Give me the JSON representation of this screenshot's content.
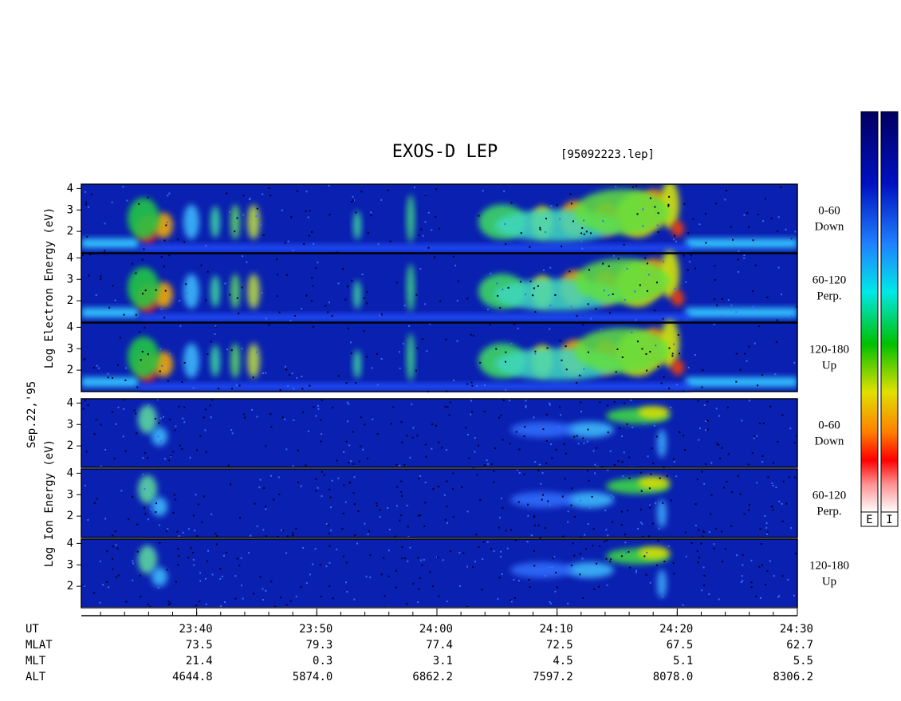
{
  "title": "EXOS-D LEP",
  "file": "[95092223.lep]",
  "date": "Sep.22,'95",
  "groups": [
    {
      "label": "Log Electron Energy (eV)",
      "species": "electron"
    },
    {
      "label": "Log Ion Energy (eV)",
      "species": "ion"
    }
  ],
  "panels": [
    {
      "group": 0,
      "lines": [
        "0-60",
        "Down"
      ]
    },
    {
      "group": 0,
      "lines": [
        "60-120",
        "Perp."
      ]
    },
    {
      "group": 0,
      "lines": [
        "120-180",
        "Up"
      ]
    },
    {
      "group": 1,
      "lines": [
        "0-60",
        "Down"
      ]
    },
    {
      "group": 1,
      "lines": [
        "60-120",
        "Perp."
      ]
    },
    {
      "group": 1,
      "lines": [
        "120-180",
        "Up"
      ]
    }
  ],
  "ylim": [
    1,
    4.2
  ],
  "yticks": [
    2,
    3,
    4
  ],
  "xlim": [
    30.4,
    90
  ],
  "xticks": [
    {
      "value": 40,
      "label": "23:40"
    },
    {
      "value": 50,
      "label": "23:50"
    },
    {
      "value": 60,
      "label": "24:00"
    },
    {
      "value": 70,
      "label": "24:10"
    },
    {
      "value": 80,
      "label": "24:20"
    },
    {
      "value": 90,
      "label": "24:30"
    }
  ],
  "orbit": {
    "labels": [
      "UT",
      "MLAT",
      "MLT",
      "ALT"
    ],
    "rows": [
      [
        "73.5",
        "79.3",
        "77.4",
        "72.5",
        "67.5",
        "62.7"
      ],
      [
        "21.4",
        "0.3",
        "3.1",
        "4.5",
        "5.1",
        "5.5"
      ],
      [
        "4644.8",
        "5874.0",
        "6862.2",
        "7597.2",
        "8078.0",
        "8306.2"
      ]
    ]
  },
  "colorbars": [
    "E",
    "I"
  ]
}
